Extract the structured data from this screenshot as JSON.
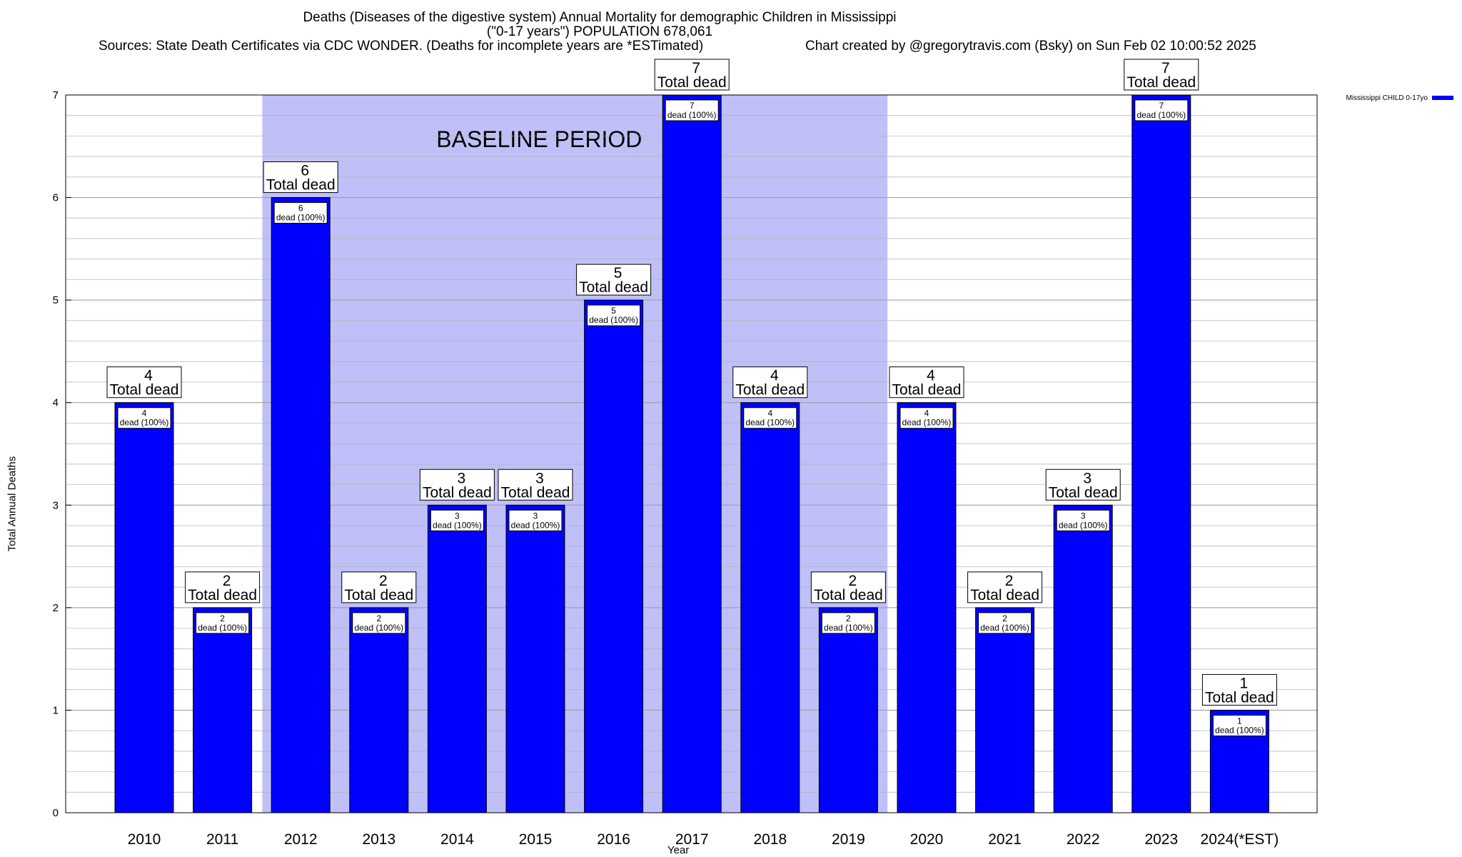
{
  "title_line1": "Deaths (Diseases of the digestive system) Annual Mortality for demographic Children in Mississippi",
  "title_line2": "(\"0-17 years\") POPULATION 678,061",
  "sources": "Sources: State Death Certificates via CDC WONDER. (Deaths for incomplete years are *ESTimated)",
  "credit": "Chart created by @gregorytravis.com (Bsky) on Sun Feb 02 10:00:52 2025",
  "colors": {
    "bar": "#0000ff",
    "baseline": "#c0c0f8",
    "grid": "#b0b0b0"
  },
  "chart_data": {
    "type": "bar",
    "categories": [
      "2010",
      "2011",
      "2012",
      "2013",
      "2014",
      "2015",
      "2016",
      "2017",
      "2018",
      "2019",
      "2020",
      "2021",
      "2022",
      "2023",
      "2024(*EST)"
    ],
    "series": [
      {
        "name": "Mississippi CHILD 0-17yo",
        "values": [
          4,
          2,
          6,
          2,
          3,
          3,
          5,
          7,
          4,
          2,
          4,
          2,
          3,
          7,
          1
        ]
      }
    ],
    "total_labels": [
      "Total dead",
      "Total dead",
      "Total dead",
      "Total dead",
      "Total dead",
      "Total dead",
      "Total dead",
      "Total dead",
      "Total dead",
      "Total dead",
      "Total dead",
      "Total dead",
      "Total dead",
      "Total dead",
      "Total dead"
    ],
    "inner_labels": [
      "dead (100%)",
      "dead (100%)",
      "dead (100%)",
      "dead (100%)",
      "dead (100%)",
      "dead (100%)",
      "dead (100%)",
      "dead (100%)",
      "dead (100%)",
      "dead (100%)",
      "dead (100%)",
      "dead (100%)",
      "dead (100%)",
      "dead (100%)",
      "dead (100%)"
    ],
    "xlabel": "Year",
    "ylabel": "Total Annual Deaths",
    "ylim": [
      0,
      7
    ],
    "yticks": [
      "0",
      "1",
      "2",
      "3",
      "4",
      "5",
      "6",
      "7"
    ],
    "grid": true,
    "legend_position": "top-right",
    "baseline_period": {
      "label": "BASELINE PERIOD",
      "from": "2012",
      "to": "2019"
    }
  }
}
